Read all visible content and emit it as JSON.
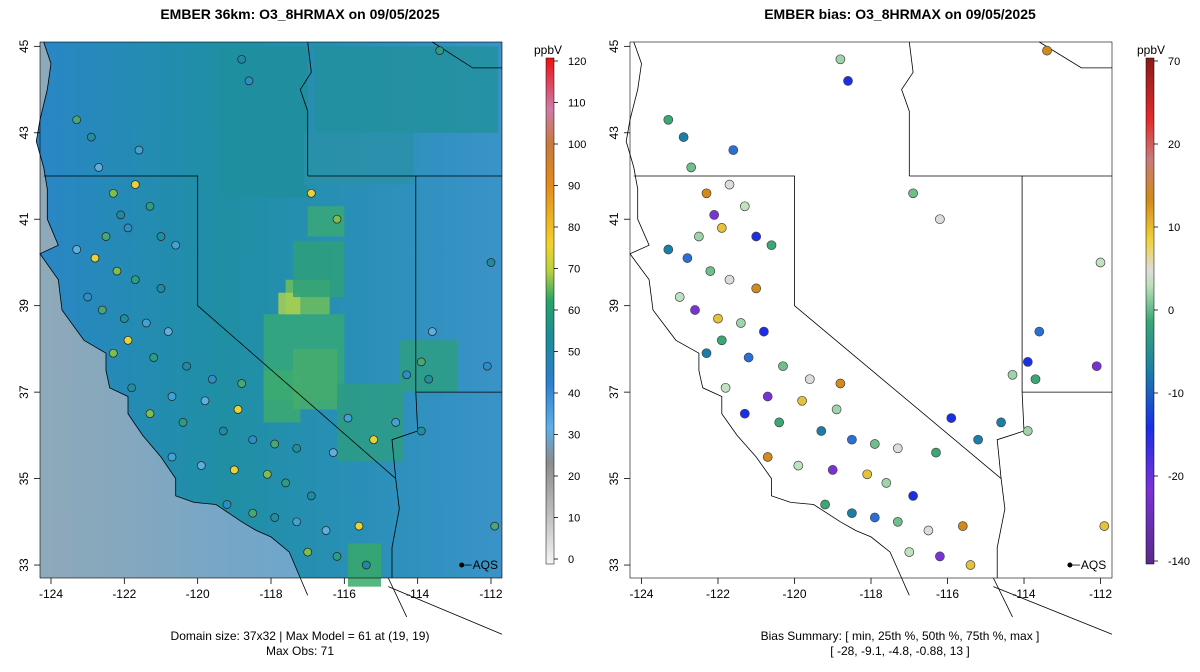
{
  "left": {
    "title": "EMBER 36km: O3_8HRMAX on 09/05/2025",
    "colorbar_unit": "ppbV",
    "colorbar_ticks": [
      "120",
      "110",
      "100",
      "90",
      "80",
      "70",
      "60",
      "50",
      "40",
      "30",
      "20",
      "10",
      "0"
    ],
    "caption_line1": "Domain size: 37x32 | Max Model = 61 at (19, 19)",
    "caption_line2": "Max Obs: 71"
  },
  "right": {
    "title": "EMBER bias: O3_8HRMAX on 09/05/2025",
    "colorbar_unit": "ppbV",
    "colorbar_ticks": [
      "70",
      "20",
      "10",
      "0",
      "-10",
      "-20",
      "-140"
    ],
    "caption_line1": "Bias Summary: [ min, 25th %, 50th %, 75th %, max ]",
    "caption_line2": "[ -28,   -9.1,   -4.8,   -0.88,   13 ]"
  },
  "axes": {
    "x_ticks": [
      "-124",
      "-122",
      "-120",
      "-118",
      "-116",
      "-114",
      "-112"
    ],
    "y_ticks": [
      "45",
      "43",
      "41",
      "39",
      "37",
      "35",
      "33"
    ],
    "lon_range": [
      -124.3,
      -111.7
    ],
    "lat_range": [
      32.7,
      45.1
    ]
  },
  "legend_label": "AQS",
  "colors": {
    "ocean_far": "#8fa8b3",
    "ocean_near": "#53a5dd",
    "land_low": "#2f8fc9",
    "land_mid": "#1b8f9e",
    "land_high": "#5bb36b",
    "peak": "#b6d45a"
  }
}
